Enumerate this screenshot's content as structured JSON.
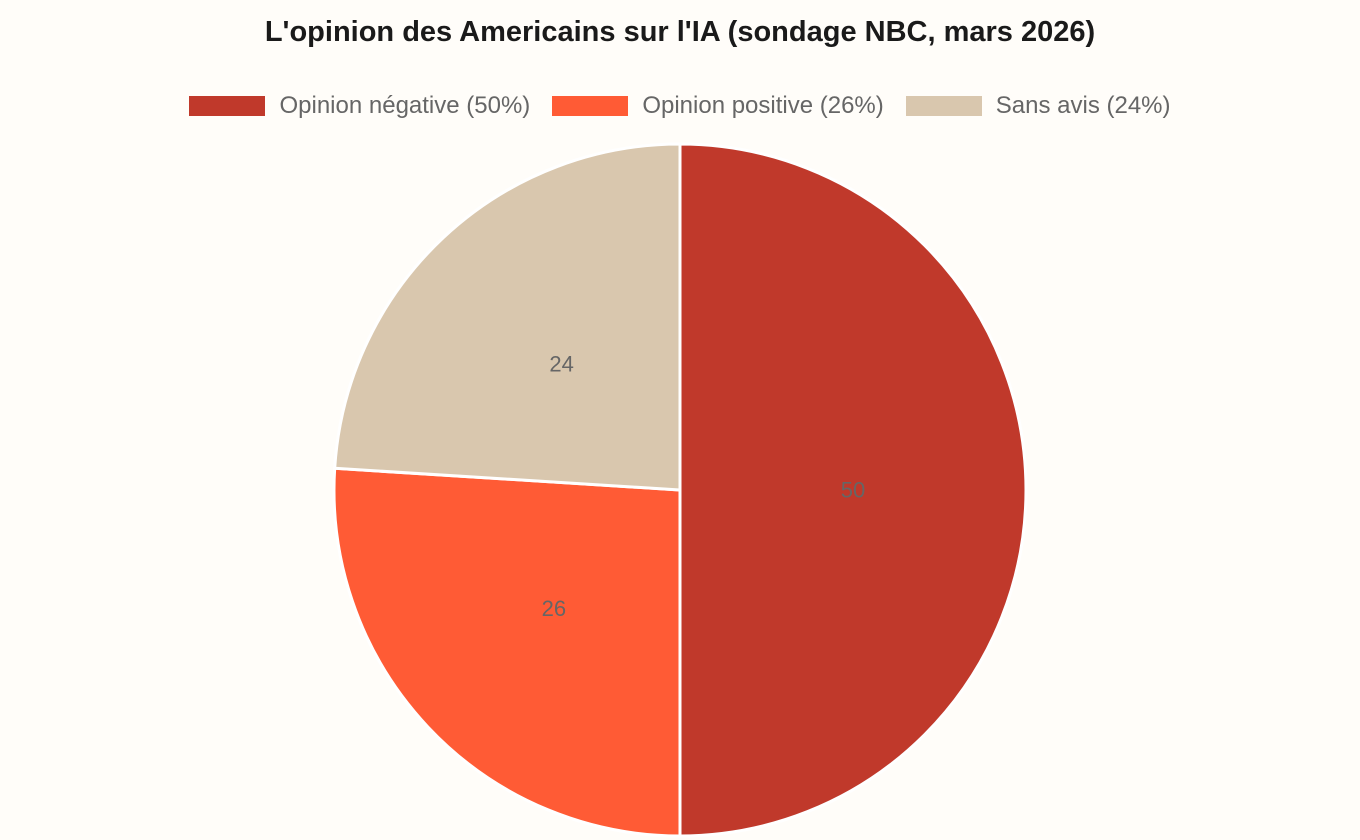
{
  "chart_data": {
    "type": "pie",
    "title": "L'opinion des Americains sur l'IA (sondage NBC, mars 2026)",
    "categories": [
      "Opinion négative (50%)",
      "Opinion positive (26%)",
      "Sans avis (24%)"
    ],
    "values": [
      50,
      26,
      24
    ],
    "data_labels": [
      "50",
      "26",
      "24"
    ],
    "colors": [
      "#c0392b",
      "#ff5b35",
      "#d9c7ae"
    ],
    "legend_position": "top",
    "start_angle": "top",
    "direction": "clockwise"
  }
}
